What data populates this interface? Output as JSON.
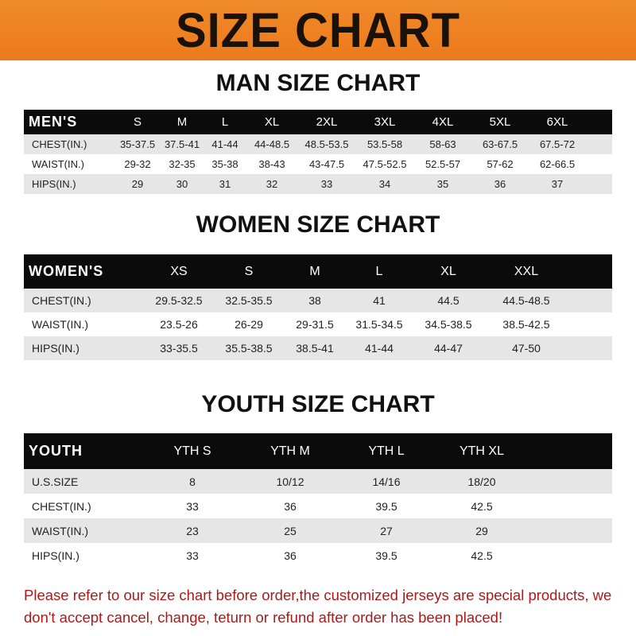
{
  "banner": {
    "title": "SIZE CHART"
  },
  "men": {
    "title": "MAN SIZE CHART",
    "header": [
      "MEN'S",
      "S",
      "M",
      "L",
      "XL",
      "2XL",
      "3XL",
      "4XL",
      "5XL",
      "6XL"
    ],
    "rows": [
      [
        "CHEST(IN.)",
        "35-37.5",
        "37.5-41",
        "41-44",
        "44-48.5",
        "48.5-53.5",
        "53.5-58",
        "58-63",
        "63-67.5",
        "67.5-72"
      ],
      [
        "WAIST(IN.)",
        "29-32",
        "32-35",
        "35-38",
        "38-43",
        "43-47.5",
        "47.5-52.5",
        "52.5-57",
        "57-62",
        "62-66.5"
      ],
      [
        "HIPS(IN.)",
        "29",
        "30",
        "31",
        "32",
        "33",
        "34",
        "35",
        "36",
        "37"
      ]
    ]
  },
  "women": {
    "title": "WOMEN SIZE CHART",
    "header": [
      "WOMEN'S",
      "XS",
      "S",
      "M",
      "L",
      "XL",
      "XXL"
    ],
    "rows": [
      [
        "CHEST(IN.)",
        "29.5-32.5",
        "32.5-35.5",
        "38",
        "41",
        "44.5",
        "44.5-48.5"
      ],
      [
        "WAIST(IN.)",
        "23.5-26",
        "26-29",
        "29-31.5",
        "31.5-34.5",
        "34.5-38.5",
        "38.5-42.5"
      ],
      [
        "HIPS(IN.)",
        "33-35.5",
        "35.5-38.5",
        "38.5-41",
        "41-44",
        "44-47",
        "47-50"
      ]
    ]
  },
  "youth": {
    "title": "YOUTH SIZE CHART",
    "header": [
      "YOUTH",
      "YTH S",
      "YTH M",
      "YTH L",
      "YTH XL"
    ],
    "rows": [
      [
        "U.S.SIZE",
        "8",
        "10/12",
        "14/16",
        "18/20"
      ],
      [
        "CHEST(IN.)",
        "33",
        "36",
        "39.5",
        "42.5"
      ],
      [
        "WAIST(IN.)",
        "23",
        "25",
        "27",
        "29"
      ],
      [
        "HIPS(IN.)",
        "33",
        "36",
        "39.5",
        "42.5"
      ]
    ]
  },
  "note": "Please refer to our size chart before order,the customized jerseys are special products, we don't accept cancel, change, teturn or refund after order has been placed!",
  "colors": {
    "banner": "#ec7a1c",
    "header": "#0b0b0b",
    "note": "#b01818"
  }
}
